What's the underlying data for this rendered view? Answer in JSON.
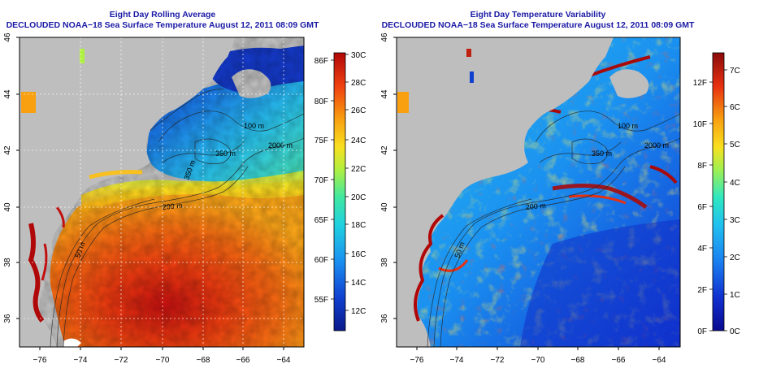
{
  "left_panel": {
    "title_line1": "Eight Day Rolling Average",
    "title_line2": "DECLOUDED NOAA−18 Sea Surface Temperature August 12, 2011 08:09 GMT",
    "colorbar": {
      "left_labels": [
        "86F",
        "80F",
        "75F",
        "70F",
        "65F",
        "60F",
        "55F"
      ],
      "right_labels": [
        "30C",
        "28C",
        "26C",
        "24C",
        "22C",
        "20C",
        "18C",
        "16C",
        "14C",
        "12C"
      ],
      "colors": [
        "#0a1a8a",
        "#1040d0",
        "#1a90f0",
        "#20d0e0",
        "#40e8a0",
        "#b0f040",
        "#f8e020",
        "#f8a010",
        "#f04010",
        "#b00808"
      ]
    },
    "contour_labels": [
      "200 m",
      "50 m",
      "100 m",
      "350 m",
      "2000 m",
      "350 m"
    ]
  },
  "right_panel": {
    "title_line1": "Eight Day Temperature Variability",
    "title_line2": "DECLOUDED NOAA−18 Sea Surface Temperature August 12, 2011 08:09 GMT",
    "colorbar": {
      "left_labels": [
        "12F",
        "10F",
        "8F",
        "6F",
        "4F",
        "2F",
        "0F"
      ],
      "right_labels": [
        "7C",
        "6C",
        "5C",
        "4C",
        "3C",
        "2C",
        "1C",
        "0C"
      ],
      "colors": [
        "#0a0a90",
        "#1030d0",
        "#1a80f0",
        "#20c0f0",
        "#30e8c0",
        "#a0f050",
        "#f8e020",
        "#f8a010",
        "#e83010",
        "#8a0a0a"
      ]
    },
    "contour_labels": [
      "200 m",
      "50 m",
      "100 m",
      "350 m",
      "2000 m"
    ]
  },
  "axes": {
    "x_ticks": [
      "−76",
      "−74",
      "−72",
      "−70",
      "−68",
      "−66",
      "−64"
    ],
    "y_ticks": [
      "46",
      "44",
      "42",
      "40",
      "38",
      "36"
    ]
  },
  "colors": {
    "land": "#bebebe",
    "title": "#1a1aa6"
  }
}
